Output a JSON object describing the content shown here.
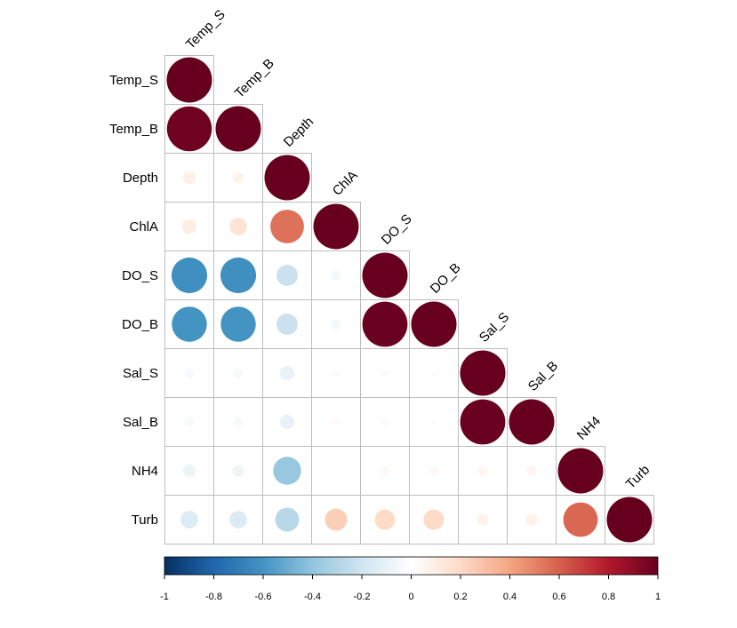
{
  "chart_data": {
    "type": "heatmap",
    "variables": [
      "Temp_S",
      "Temp_B",
      "Depth",
      "ChlA",
      "DO_S",
      "DO_B",
      "Sal_S",
      "Sal_B",
      "NH4",
      "Turb"
    ],
    "matrix": [
      [
        1.0
      ],
      [
        0.98,
        1.0
      ],
      [
        0.08,
        0.06,
        1.0
      ],
      [
        0.1,
        0.15,
        0.55,
        1.0
      ],
      [
        -0.62,
        -0.62,
        -0.22,
        -0.05,
        1.0
      ],
      [
        -0.6,
        -0.6,
        -0.22,
        -0.05,
        0.99,
        1.0
      ],
      [
        -0.04,
        -0.04,
        -0.1,
        0.03,
        -0.03,
        -0.02,
        1.0
      ],
      [
        -0.04,
        -0.04,
        -0.1,
        0.03,
        -0.03,
        -0.02,
        0.99,
        1.0
      ],
      [
        -0.08,
        -0.07,
        -0.38,
        -0.01,
        0.04,
        0.04,
        0.05,
        0.05,
        1.0
      ],
      [
        -0.15,
        -0.15,
        -0.28,
        0.24,
        0.2,
        0.2,
        0.07,
        0.07,
        0.58,
        1.0
      ]
    ],
    "colorbar": {
      "ticks": [
        "-1",
        "-0.8",
        "-0.6",
        "-0.4",
        "-0.2",
        "0",
        "0.2",
        "0.4",
        "0.6",
        "0.8",
        "1"
      ],
      "range": [
        -1,
        1
      ]
    },
    "palette": [
      "#053061",
      "#2166AC",
      "#4393C3",
      "#92C5DE",
      "#D1E5F0",
      "#FFFFFF",
      "#FDDBC7",
      "#F4A582",
      "#D6604D",
      "#B2182B",
      "#67001F"
    ]
  }
}
